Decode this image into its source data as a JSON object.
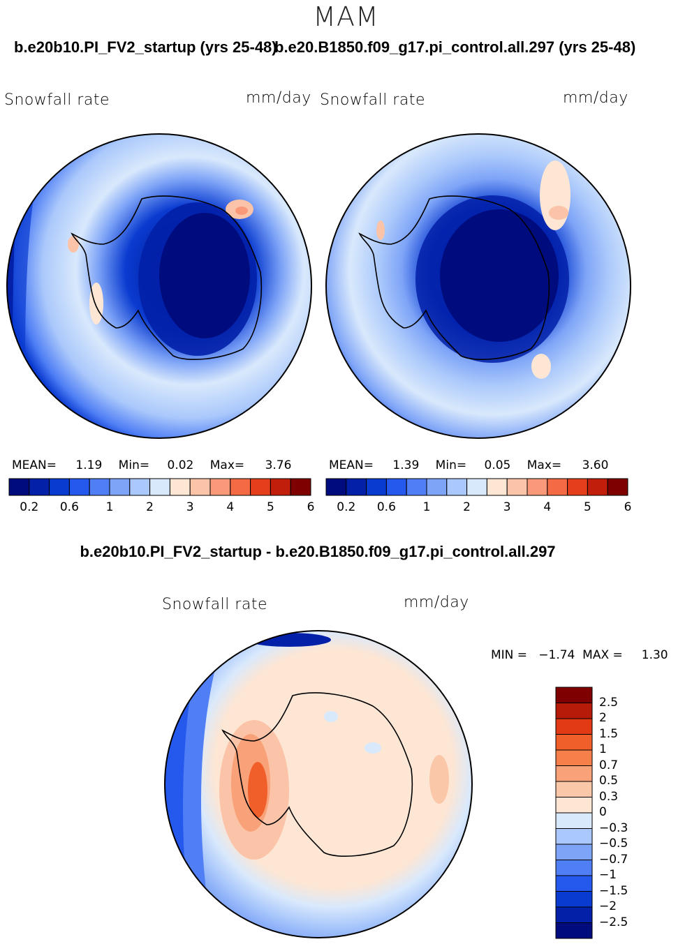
{
  "season": "MAM",
  "left_panel": {
    "case_title": "b.e20b10.PI_FV2_startup (yrs 25-48)",
    "variable": "Snowfall rate",
    "units": "mm/day",
    "stats": {
      "mean_label": "MEAN=",
      "mean": "1.19",
      "min_label": "Min=",
      "min": "0.02",
      "max_label": "Max=",
      "max": "3.76"
    }
  },
  "right_panel": {
    "case_title": "b.e20.B1850.f09_g17.pi_control.all.297 (yrs 25-48)",
    "variable": "Snowfall rate",
    "units": "mm/day",
    "stats": {
      "mean_label": "MEAN=",
      "mean": "1.39",
      "min_label": "Min=",
      "min": "0.05",
      "max_label": "Max=",
      "max": "3.60"
    }
  },
  "abs_colorbar": {
    "colors": [
      "#000c7e",
      "#0220a8",
      "#0a3bd0",
      "#2558ec",
      "#4f7ef5",
      "#7ea4f7",
      "#aac8fb",
      "#d9e9fc",
      "#fde6d4",
      "#fbc4a8",
      "#f9997a",
      "#f36a45",
      "#e43e1c",
      "#c11f0c",
      "#7f0000"
    ],
    "tick_labels": [
      "0.2",
      "0.6",
      "1",
      "2",
      "3",
      "4",
      "5",
      "6"
    ]
  },
  "diff_panel": {
    "title": "b.e20b10.PI_FV2_startup - b.e20.B1850.f09_g17.pi_control.all.297",
    "variable": "Snowfall rate",
    "units": "mm/day",
    "minmax": "MIN =   −1.74  MAX =     1.30"
  },
  "diff_colorbar": {
    "colors_top_to_bottom": [
      "#7f0000",
      "#b51b08",
      "#e23a14",
      "#f05e2a",
      "#f77f4a",
      "#f9a178",
      "#fbc7a9",
      "#fde6d4",
      "#d9e9fc",
      "#aac8fb",
      "#7ea4f7",
      "#4f7ef5",
      "#2558ec",
      "#0a3bd0",
      "#0220a8",
      "#000c7e"
    ],
    "tick_labels": [
      "2.5",
      "2",
      "1.5",
      "1",
      "0.7",
      "0.5",
      "0.3",
      "0",
      "−0.3",
      "−0.5",
      "−0.7",
      "−1",
      "−1.5",
      "−2",
      "−2.5"
    ]
  }
}
